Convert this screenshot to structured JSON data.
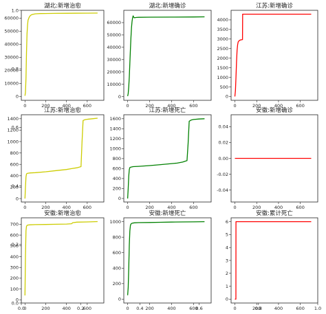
{
  "chart_data": [
    {
      "type": "line",
      "title": "湖北:新增治愈",
      "color": "#cccc00",
      "xlim": [
        -35,
        760
      ],
      "ylim": [
        -3000,
        66000
      ],
      "xticks": [
        0,
        200,
        400,
        600
      ],
      "yticks": [
        0,
        10000,
        20000,
        30000,
        40000,
        50000,
        60000
      ],
      "series": [
        {
          "x": [
            0,
            5,
            10,
            15,
            20,
            25,
            30,
            40,
            50,
            60,
            70,
            80,
            100,
            150,
            200,
            300,
            400,
            500,
            600,
            700
          ],
          "y": [
            500,
            3000,
            14000,
            33000,
            48000,
            55000,
            58500,
            60500,
            61800,
            62400,
            62800,
            63000,
            63300,
            63500,
            63600,
            63700,
            63750,
            63800,
            63850,
            63900
          ]
        }
      ]
    },
    {
      "type": "line",
      "title": "湖北:新增确诊",
      "color": "#008000",
      "xlim": [
        -35,
        760
      ],
      "ylim": [
        -3000,
        70000
      ],
      "xticks": [
        0,
        200,
        400,
        600
      ],
      "yticks": [
        0,
        10000,
        20000,
        30000,
        40000,
        50000,
        60000
      ],
      "series": [
        {
          "x": [
            0,
            5,
            10,
            15,
            20,
            25,
            30,
            35,
            40,
            45,
            50,
            55,
            60,
            70,
            80,
            100,
            200,
            400,
            600,
            700
          ],
          "y": [
            400,
            2500,
            8000,
            16000,
            27000,
            38000,
            48000,
            56000,
            61000,
            64000,
            65500,
            64500,
            64000,
            64100,
            64200,
            64300,
            64400,
            64500,
            64600,
            64700
          ]
        }
      ]
    },
    {
      "type": "line",
      "title": "江苏:新增确诊",
      "color": "#ff0000",
      "xlim": [
        -35,
        760
      ],
      "ylim": [
        -200,
        4500
      ],
      "xticks": [
        0,
        200,
        400,
        600
      ],
      "yticks": [
        0,
        500,
        1000,
        1500,
        2000,
        2500,
        3000,
        3500,
        4000
      ],
      "series": [
        {
          "x": [
            0,
            5,
            10,
            15,
            20,
            25,
            30,
            40,
            50,
            60,
            70,
            71,
            100,
            200,
            400,
            600,
            700
          ],
          "y": [
            0,
            300,
            1000,
            1800,
            2400,
            2700,
            2850,
            2920,
            2950,
            2960,
            2970,
            4300,
            4300,
            4300,
            4300,
            4300,
            4300
          ]
        }
      ]
    },
    {
      "type": "line",
      "title": "江苏:新增治愈",
      "color": "#cccc00",
      "xlim": [
        -35,
        760
      ],
      "ylim": [
        -60,
        1470
      ],
      "xticks": [
        0,
        200,
        400,
        600
      ],
      "yticks": [
        0,
        200,
        400,
        600,
        800,
        1000,
        1200,
        1400
      ],
      "series": [
        {
          "x": [
            0,
            5,
            10,
            15,
            20,
            30,
            50,
            100,
            200,
            300,
            400,
            450,
            500,
            540,
            550,
            560,
            580,
            600,
            650,
            700
          ],
          "y": [
            0,
            200,
            380,
            430,
            440,
            445,
            450,
            455,
            470,
            490,
            510,
            525,
            540,
            560,
            1000,
            1370,
            1385,
            1390,
            1400,
            1410
          ]
        }
      ]
    },
    {
      "type": "line",
      "title": "江苏:新增死亡",
      "color": "#008000",
      "xlim": [
        -35,
        760
      ],
      "ylim": [
        -70,
        1680
      ],
      "xticks": [
        0,
        200,
        400,
        600
      ],
      "yticks": [
        0,
        200,
        400,
        600,
        800,
        1000,
        1200,
        1400,
        1600
      ],
      "series": [
        {
          "x": [
            0,
            5,
            10,
            15,
            20,
            30,
            50,
            100,
            200,
            300,
            400,
            450,
            500,
            540,
            550,
            560,
            580,
            600,
            650,
            700
          ],
          "y": [
            0,
            200,
            450,
            580,
            620,
            630,
            640,
            645,
            660,
            680,
            700,
            710,
            730,
            760,
            1100,
            1550,
            1575,
            1585,
            1595,
            1600
          ]
        }
      ]
    },
    {
      "type": "line",
      "title": "安徽:新增确诊",
      "color": "#ff0000",
      "xlim": [
        -35,
        760
      ],
      "ylim": [
        -0.055,
        0.055
      ],
      "xticks": [
        0,
        200,
        400,
        600
      ],
      "yticks": [
        -0.04,
        -0.02,
        0.0,
        0.02,
        0.04
      ],
      "series": [
        {
          "x": [
            0,
            700
          ],
          "y": [
            0,
            0
          ]
        }
      ]
    },
    {
      "type": "line",
      "title": "安徽:新增治愈",
      "color": "#cccc00",
      "xlim": [
        -35,
        760
      ],
      "ylim": [
        -30,
        760
      ],
      "xticks": [
        0,
        200,
        400,
        600
      ],
      "yticks": [
        0,
        100,
        200,
        300,
        400,
        500,
        600,
        700
      ],
      "series": [
        {
          "x": [
            0,
            5,
            10,
            15,
            20,
            30,
            50,
            100,
            200,
            300,
            400,
            450,
            460,
            500,
            600,
            700
          ],
          "y": [
            40,
            400,
            640,
            680,
            690,
            693,
            695,
            697,
            698,
            700,
            702,
            705,
            715,
            720,
            722,
            725
          ]
        }
      ]
    },
    {
      "type": "line",
      "title": "安徽:新增死亡",
      "color": "#008000",
      "xlim": [
        -35,
        760
      ],
      "ylim": [
        -50,
        1050
      ],
      "xticks": [
        0,
        200,
        400,
        600
      ],
      "yticks": [
        0,
        200,
        400,
        600,
        800,
        1000
      ],
      "series": [
        {
          "x": [
            0,
            5,
            10,
            15,
            20,
            25,
            30,
            40,
            60,
            100,
            200,
            300,
            400,
            500,
            600,
            700
          ],
          "y": [
            50,
            150,
            400,
            700,
            880,
            950,
            970,
            980,
            985,
            988,
            990,
            992,
            995,
            997,
            998,
            1000
          ]
        }
      ]
    },
    {
      "type": "line",
      "title": "安徽:累计死亡",
      "color": "#ff0000",
      "xlim": [
        -35,
        760
      ],
      "ylim": [
        -0.3,
        6.3
      ],
      "xticks": [
        0,
        200,
        400,
        600
      ],
      "yticks": [
        0,
        1,
        2,
        3,
        4,
        5,
        6
      ],
      "series": [
        {
          "x": [
            0,
            9,
            10,
            700
          ],
          "y": [
            0,
            0,
            6,
            6
          ]
        }
      ]
    }
  ],
  "overlay_ticks": {
    "x": [
      "0.0",
      "0.2",
      "0.4",
      "0.6",
      "0.8",
      "1.0"
    ],
    "y": [
      "0.0",
      "0.2",
      "0.4",
      "0.6",
      "0.8",
      "1.0"
    ]
  }
}
